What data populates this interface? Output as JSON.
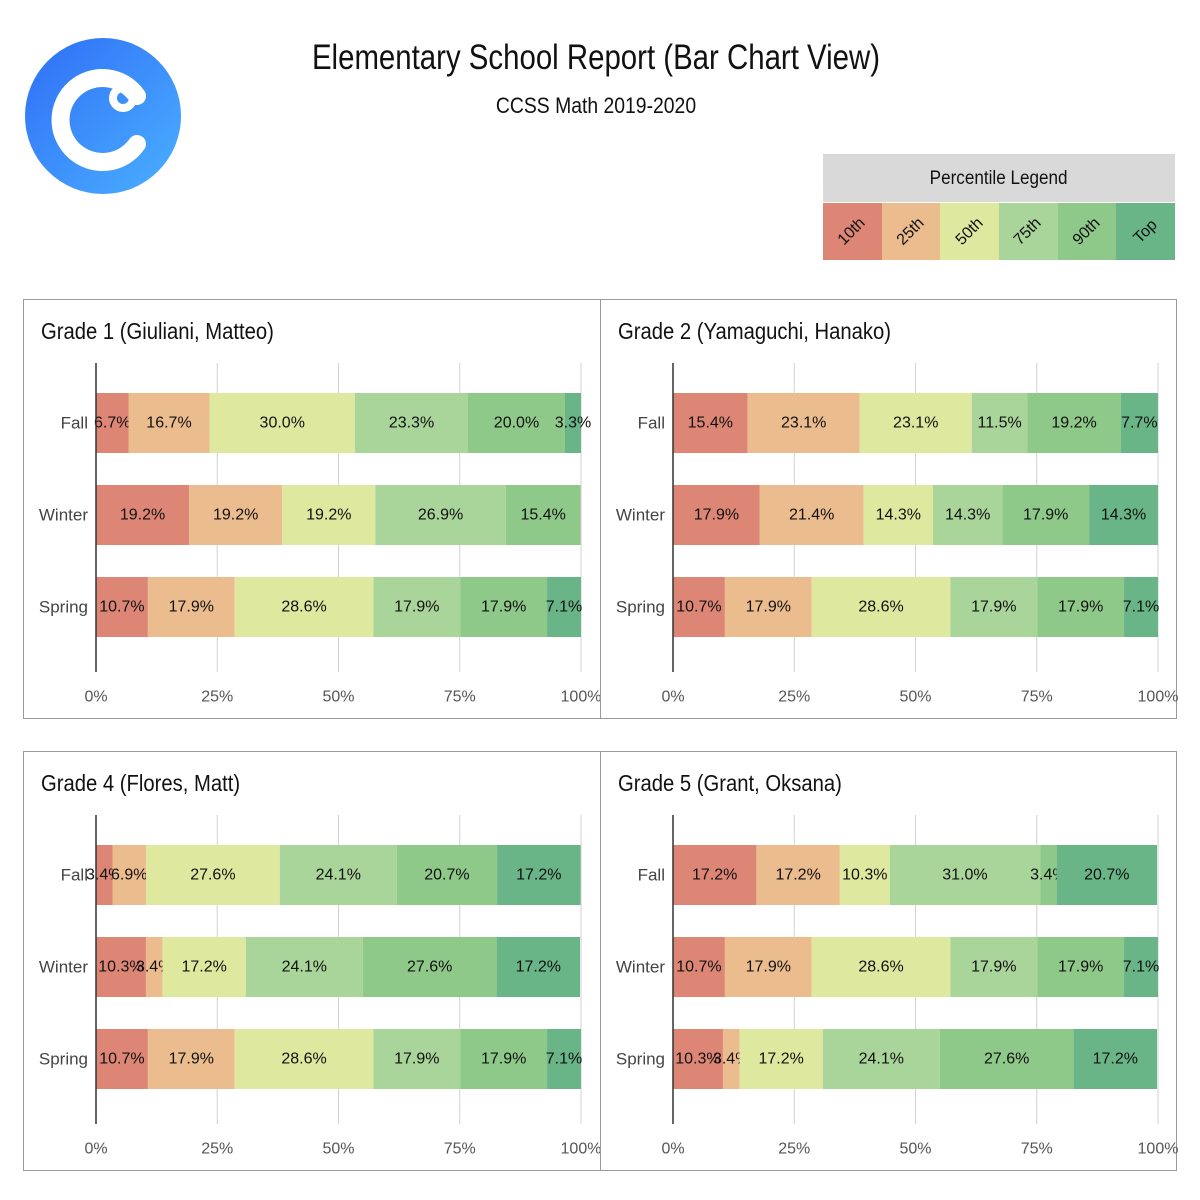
{
  "header": {
    "title": "Elementary School Report (Bar Chart View)",
    "subtitle": "CCSS Math 2019-2020",
    "logo_letter": "C"
  },
  "legend": {
    "title": "Percentile Legend",
    "items": [
      {
        "label": "10th",
        "color": "#dd8676"
      },
      {
        "label": "25th",
        "color": "#ebbc8e"
      },
      {
        "label": "50th",
        "color": "#dfe89f"
      },
      {
        "label": "75th",
        "color": "#a9d49a"
      },
      {
        "label": "90th",
        "color": "#8ec98a"
      },
      {
        "label": "Top",
        "color": "#69b587"
      }
    ]
  },
  "chart_data": [
    {
      "type": "bar",
      "stacked": true,
      "orientation": "horizontal",
      "title": "Grade 1 (Giuliani, Matteo)",
      "categories": [
        "Fall",
        "Winter",
        "Spring"
      ],
      "xlim": [
        0,
        100
      ],
      "xticks": [
        "0%",
        "25%",
        "50%",
        "75%",
        "100%"
      ],
      "grid": true,
      "series": [
        {
          "name": "10th",
          "values": [
            6.7,
            19.2,
            10.7
          ]
        },
        {
          "name": "25th",
          "values": [
            16.7,
            19.2,
            17.9
          ]
        },
        {
          "name": "50th",
          "values": [
            30.0,
            19.2,
            28.6
          ]
        },
        {
          "name": "75th",
          "values": [
            23.3,
            26.9,
            17.9
          ]
        },
        {
          "name": "90th",
          "values": [
            20.0,
            15.4,
            17.9
          ]
        },
        {
          "name": "Top",
          "values": [
            3.3,
            0,
            7.1
          ]
        }
      ]
    },
    {
      "type": "bar",
      "stacked": true,
      "orientation": "horizontal",
      "title": "Grade 2 (Yamaguchi, Hanako)",
      "categories": [
        "Fall",
        "Winter",
        "Spring"
      ],
      "xlim": [
        0,
        100
      ],
      "xticks": [
        "0%",
        "25%",
        "50%",
        "75%",
        "100%"
      ],
      "grid": true,
      "series": [
        {
          "name": "10th",
          "values": [
            15.4,
            17.9,
            10.7
          ]
        },
        {
          "name": "25th",
          "values": [
            23.1,
            21.4,
            17.9
          ]
        },
        {
          "name": "50th",
          "values": [
            23.1,
            14.3,
            28.6
          ]
        },
        {
          "name": "75th",
          "values": [
            11.5,
            14.3,
            17.9
          ]
        },
        {
          "name": "90th",
          "values": [
            19.2,
            17.9,
            17.9
          ]
        },
        {
          "name": "Top",
          "values": [
            7.7,
            14.3,
            7.1
          ]
        }
      ]
    },
    {
      "type": "bar",
      "stacked": true,
      "orientation": "horizontal",
      "title": "Grade 4 (Flores, Matt)",
      "categories": [
        "Fall",
        "Winter",
        "Spring"
      ],
      "xlim": [
        0,
        100
      ],
      "xticks": [
        "0%",
        "25%",
        "50%",
        "75%",
        "100%"
      ],
      "grid": true,
      "series": [
        {
          "name": "10th",
          "values": [
            3.4,
            10.3,
            10.7
          ]
        },
        {
          "name": "25th",
          "values": [
            6.9,
            3.4,
            17.9
          ]
        },
        {
          "name": "50th",
          "values": [
            27.6,
            17.2,
            28.6
          ]
        },
        {
          "name": "75th",
          "values": [
            24.1,
            24.1,
            17.9
          ]
        },
        {
          "name": "90th",
          "values": [
            20.7,
            27.6,
            17.9
          ]
        },
        {
          "name": "Top",
          "values": [
            17.2,
            17.2,
            7.1
          ]
        }
      ]
    },
    {
      "type": "bar",
      "stacked": true,
      "orientation": "horizontal",
      "title": "Grade 5 (Grant, Oksana)",
      "categories": [
        "Fall",
        "Winter",
        "Spring"
      ],
      "xlim": [
        0,
        100
      ],
      "xticks": [
        "0%",
        "25%",
        "50%",
        "75%",
        "100%"
      ],
      "grid": true,
      "series": [
        {
          "name": "10th",
          "values": [
            17.2,
            10.7,
            10.3
          ]
        },
        {
          "name": "25th",
          "values": [
            17.2,
            17.9,
            3.4
          ]
        },
        {
          "name": "50th",
          "values": [
            10.3,
            28.6,
            17.2
          ]
        },
        {
          "name": "75th",
          "values": [
            31.0,
            17.9,
            24.1
          ]
        },
        {
          "name": "90th",
          "values": [
            3.4,
            17.9,
            27.6
          ]
        },
        {
          "name": "Top",
          "values": [
            20.7,
            7.1,
            17.2
          ]
        }
      ]
    }
  ]
}
